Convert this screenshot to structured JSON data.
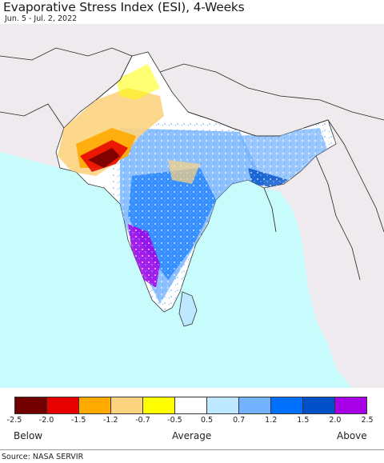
{
  "header": {
    "title": "Evaporative Stress Index (ESI), 4-Weeks",
    "date_range": "Jun. 5 - Jul. 2, 2022"
  },
  "map": {
    "colors": {
      "ocean": "#c8fcfc",
      "land_outside": "#efeaee",
      "boundary": "#222222",
      "near_normal": "#ffffff"
    },
    "features": [
      "ocean",
      "land-outside-region",
      "india-subcontinent",
      "sri-lanka",
      "country-borders",
      "coastlines"
    ]
  },
  "legend": {
    "colors": [
      "#730000",
      "#e60000",
      "#ffaa00",
      "#fcd37f",
      "#ffff00",
      "#ffffff",
      "#bee8ff",
      "#73b2ff",
      "#0070ff",
      "#0050c8",
      "#a800e6"
    ],
    "ticks": [
      "-2.5",
      "-2.0",
      "-1.5",
      "-1.2",
      "-0.7",
      "-0.5",
      "0.5",
      "0.7",
      "1.2",
      "1.5",
      "2.0",
      "2.5"
    ],
    "below_label": "Below",
    "average_label": "Average",
    "above_label": "Above"
  },
  "footer": {
    "source": "Source: NASA SERVIR"
  }
}
